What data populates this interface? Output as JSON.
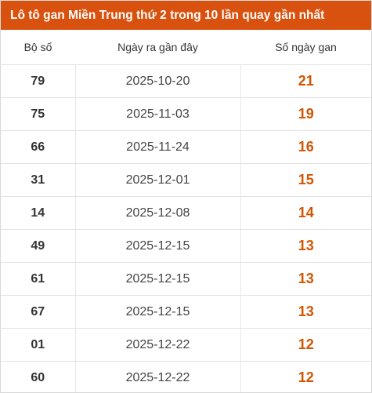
{
  "title": "Lô tô gan Miền Trung thứ 2 trong 10 lần quay gần nhất",
  "headers": {
    "number": "Bộ số",
    "last_date": "Ngày ra gần đây",
    "days_gan": "Số ngày gan"
  },
  "rows": [
    {
      "number": "79",
      "last_date": "2025-10-20",
      "days_gan": "21"
    },
    {
      "number": "75",
      "last_date": "2025-11-03",
      "days_gan": "19"
    },
    {
      "number": "66",
      "last_date": "2025-11-24",
      "days_gan": "16"
    },
    {
      "number": "31",
      "last_date": "2025-12-01",
      "days_gan": "15"
    },
    {
      "number": "14",
      "last_date": "2025-12-08",
      "days_gan": "14"
    },
    {
      "number": "49",
      "last_date": "2025-12-15",
      "days_gan": "13"
    },
    {
      "number": "61",
      "last_date": "2025-12-15",
      "days_gan": "13"
    },
    {
      "number": "67",
      "last_date": "2025-12-15",
      "days_gan": "13"
    },
    {
      "number": "01",
      "last_date": "2025-12-22",
      "days_gan": "12"
    },
    {
      "number": "60",
      "last_date": "2025-12-22",
      "days_gan": "12"
    }
  ],
  "colors": {
    "header_bg": "#d9510e",
    "days_text": "#d35400"
  }
}
